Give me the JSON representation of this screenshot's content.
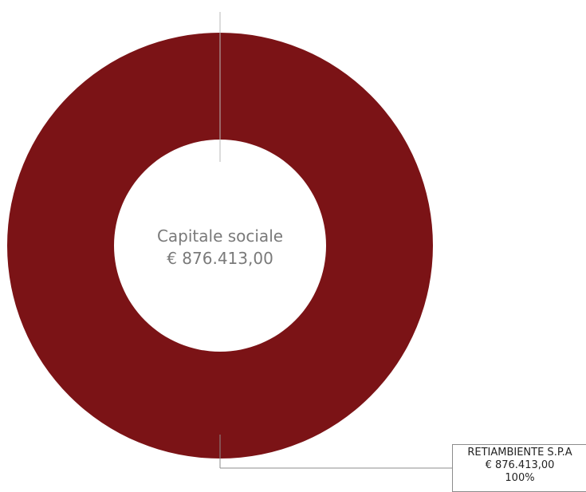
{
  "chart_data": {
    "type": "pie",
    "center_label": {
      "title": "Capitale sociale",
      "value": "€ 876.413,00"
    },
    "slices": [
      {
        "name": "RETIAMBIENTE S.P.A",
        "value_label": "€ 876.413,00",
        "value": 876413.0,
        "percent_label": "100%",
        "percent": 100,
        "color": "#7b1316"
      }
    ]
  }
}
